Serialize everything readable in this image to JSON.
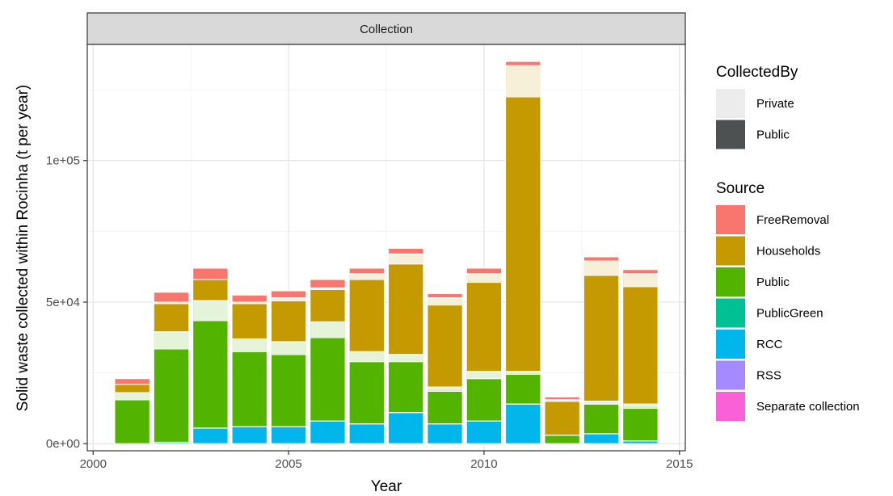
{
  "chart_data": {
    "type": "bar",
    "stacked": true,
    "facet_title": "Collection",
    "xlabel": "Year",
    "ylabel": "Solid waste collected within Rocinha (t per year)",
    "xlim": [
      1999.85,
      2015.15
    ],
    "ylim": [
      -2500,
      141000
    ],
    "x_ticks": [
      {
        "value": 2000,
        "label": "2000"
      },
      {
        "value": 2005,
        "label": "2005"
      },
      {
        "value": 2010,
        "label": "2010"
      },
      {
        "value": 2015,
        "label": "2015"
      }
    ],
    "y_ticks": [
      {
        "value": 0,
        "label": "0e+00"
      },
      {
        "value": 50000,
        "label": "5e+04"
      },
      {
        "value": 100000,
        "label": "1e+05"
      }
    ],
    "grid": true,
    "legends": [
      {
        "title": "CollectedBy",
        "items": [
          {
            "label": "Private",
            "color": "#ececec"
          },
          {
            "label": "Public",
            "color": "#4d5151"
          }
        ]
      },
      {
        "title": "Source",
        "items": [
          {
            "label": "FreeRemoval",
            "color": "#F8766D"
          },
          {
            "label": "Households",
            "color": "#C49A00"
          },
          {
            "label": "Public",
            "color": "#53B400"
          },
          {
            "label": "PublicGreen",
            "color": "#00C094"
          },
          {
            "label": "RCC",
            "color": "#00B6EB"
          },
          {
            "label": "RSS",
            "color": "#A58AFF"
          },
          {
            "label": "Separate collection",
            "color": "#FB61D7"
          }
        ]
      }
    ],
    "source_colors": {
      "FreeRemoval": "#F8766D",
      "Households": "#C49A00",
      "Public": "#53B400",
      "PublicGreen": "#00C094",
      "RCC": "#00B6EB",
      "RSS": "#A58AFF",
      "Separate collection": "#FB61D7"
    },
    "bars": [
      {
        "year": 2001,
        "segments": [
          {
            "source": "Public",
            "by": "Public",
            "value": 15500
          },
          {
            "source": "Public",
            "by": "Private",
            "value": 2500
          },
          {
            "source": "Households",
            "by": "Public",
            "value": 3000
          },
          {
            "source": "FreeRemoval",
            "by": "Public",
            "value": 2000
          }
        ]
      },
      {
        "year": 2002,
        "segments": [
          {
            "source": "RCC",
            "by": "Public",
            "value": 500
          },
          {
            "source": "Public",
            "by": "Public",
            "value": 33000
          },
          {
            "source": "Public",
            "by": "Private",
            "value": 6000
          },
          {
            "source": "Households",
            "by": "Public",
            "value": 10000
          },
          {
            "source": "Households",
            "by": "Private",
            "value": 500
          },
          {
            "source": "FreeRemoval",
            "by": "Public",
            "value": 3500
          }
        ]
      },
      {
        "year": 2003,
        "segments": [
          {
            "source": "RCC",
            "by": "Public",
            "value": 5500
          },
          {
            "source": "Public",
            "by": "Public",
            "value": 38000
          },
          {
            "source": "Public",
            "by": "Private",
            "value": 7000
          },
          {
            "source": "Households",
            "by": "Public",
            "value": 7500
          },
          {
            "source": "FreeRemoval",
            "by": "Public",
            "value": 4000
          }
        ]
      },
      {
        "year": 2004,
        "segments": [
          {
            "source": "RCC",
            "by": "Public",
            "value": 6000
          },
          {
            "source": "Public",
            "by": "Public",
            "value": 26500
          },
          {
            "source": "Public",
            "by": "Private",
            "value": 4500
          },
          {
            "source": "Households",
            "by": "Public",
            "value": 12500
          },
          {
            "source": "Households",
            "by": "Private",
            "value": 500
          },
          {
            "source": "FreeRemoval",
            "by": "Public",
            "value": 2500
          }
        ]
      },
      {
        "year": 2005,
        "segments": [
          {
            "source": "RCC",
            "by": "Public",
            "value": 6000
          },
          {
            "source": "Public",
            "by": "Public",
            "value": 25500
          },
          {
            "source": "Public",
            "by": "Private",
            "value": 4500
          },
          {
            "source": "Households",
            "by": "Public",
            "value": 14500
          },
          {
            "source": "Households",
            "by": "Private",
            "value": 1000
          },
          {
            "source": "FreeRemoval",
            "by": "Public",
            "value": 2500
          }
        ]
      },
      {
        "year": 2006,
        "segments": [
          {
            "source": "RCC",
            "by": "Public",
            "value": 8000
          },
          {
            "source": "Public",
            "by": "Public",
            "value": 29500
          },
          {
            "source": "Public",
            "by": "Private",
            "value": 5500
          },
          {
            "source": "Households",
            "by": "Public",
            "value": 11500
          },
          {
            "source": "Households",
            "by": "Private",
            "value": 500
          },
          {
            "source": "FreeRemoval",
            "by": "Public",
            "value": 3000
          }
        ]
      },
      {
        "year": 2007,
        "segments": [
          {
            "source": "RCC",
            "by": "Public",
            "value": 7000
          },
          {
            "source": "Public",
            "by": "Public",
            "value": 22000
          },
          {
            "source": "Public",
            "by": "Private",
            "value": 3500
          },
          {
            "source": "Households",
            "by": "Public",
            "value": 25500
          },
          {
            "source": "Households",
            "by": "Private",
            "value": 2000
          },
          {
            "source": "FreeRemoval",
            "by": "Public",
            "value": 2000
          }
        ]
      },
      {
        "year": 2008,
        "segments": [
          {
            "source": "RCC",
            "by": "Public",
            "value": 11000
          },
          {
            "source": "Public",
            "by": "Public",
            "value": 18000
          },
          {
            "source": "Public",
            "by": "Private",
            "value": 2500
          },
          {
            "source": "Households",
            "by": "Public",
            "value": 32000
          },
          {
            "source": "Households",
            "by": "Private",
            "value": 3500
          },
          {
            "source": "FreeRemoval",
            "by": "Public",
            "value": 2000
          }
        ]
      },
      {
        "year": 2009,
        "segments": [
          {
            "source": "RCC",
            "by": "Public",
            "value": 7000
          },
          {
            "source": "Public",
            "by": "Public",
            "value": 11500
          },
          {
            "source": "Public",
            "by": "Private",
            "value": 1500
          },
          {
            "source": "Households",
            "by": "Public",
            "value": 29000
          },
          {
            "source": "Households",
            "by": "Private",
            "value": 2500
          },
          {
            "source": "FreeRemoval",
            "by": "Public",
            "value": 1500
          }
        ]
      },
      {
        "year": 2010,
        "segments": [
          {
            "source": "RCC",
            "by": "Public",
            "value": 8000
          },
          {
            "source": "Public",
            "by": "Public",
            "value": 15000
          },
          {
            "source": "Public",
            "by": "Private",
            "value": 2500
          },
          {
            "source": "Households",
            "by": "Public",
            "value": 31500
          },
          {
            "source": "Households",
            "by": "Private",
            "value": 3000
          },
          {
            "source": "FreeRemoval",
            "by": "Public",
            "value": 2000
          }
        ]
      },
      {
        "year": 2011,
        "segments": [
          {
            "source": "RCC",
            "by": "Public",
            "value": 14000
          },
          {
            "source": "Public",
            "by": "Public",
            "value": 10500
          },
          {
            "source": "Public",
            "by": "Private",
            "value": 1000
          },
          {
            "source": "Households",
            "by": "Public",
            "value": 97000
          },
          {
            "source": "Households",
            "by": "Private",
            "value": 11000
          },
          {
            "source": "FreeRemoval",
            "by": "Public",
            "value": 1500
          }
        ]
      },
      {
        "year": 2012,
        "segments": [
          {
            "source": "Public",
            "by": "Public",
            "value": 3000
          },
          {
            "source": "Households",
            "by": "Public",
            "value": 12000
          },
          {
            "source": "Households",
            "by": "Private",
            "value": 500
          },
          {
            "source": "FreeRemoval",
            "by": "Public",
            "value": 1000
          }
        ]
      },
      {
        "year": 2013,
        "segments": [
          {
            "source": "RCC",
            "by": "Public",
            "value": 3500
          },
          {
            "source": "Public",
            "by": "Public",
            "value": 10500
          },
          {
            "source": "Public",
            "by": "Private",
            "value": 1000
          },
          {
            "source": "Households",
            "by": "Public",
            "value": 44500
          },
          {
            "source": "Households",
            "by": "Private",
            "value": 5000
          },
          {
            "source": "FreeRemoval",
            "by": "Public",
            "value": 1500
          }
        ]
      },
      {
        "year": 2014,
        "segments": [
          {
            "source": "RCC",
            "by": "Public",
            "value": 1000
          },
          {
            "source": "Public",
            "by": "Public",
            "value": 11500
          },
          {
            "source": "Public",
            "by": "Private",
            "value": 1500
          },
          {
            "source": "Households",
            "by": "Public",
            "value": 41500
          },
          {
            "source": "Households",
            "by": "Private",
            "value": 4500
          },
          {
            "source": "FreeRemoval",
            "by": "Public",
            "value": 1500
          }
        ]
      }
    ]
  }
}
